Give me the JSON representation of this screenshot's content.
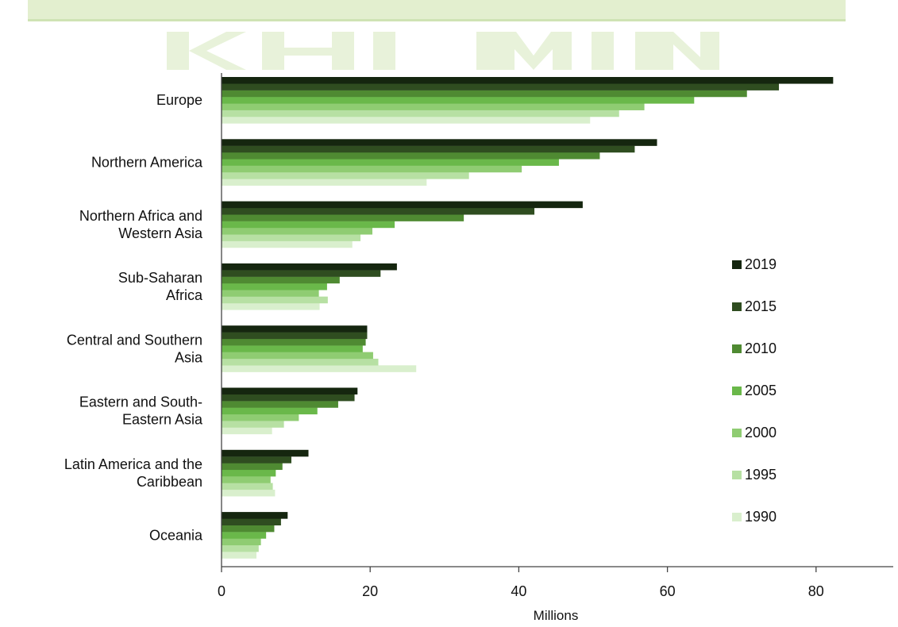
{
  "chart_data": {
    "type": "bar",
    "orientation": "horizontal",
    "title": "",
    "xlabel": "Millions",
    "ylabel": "",
    "xlim": [
      0,
      90
    ],
    "x_ticks": [
      0,
      20,
      40,
      60,
      80
    ],
    "grid": false,
    "legend_position": "right",
    "categories": [
      [
        "Europe"
      ],
      [
        "Northern America"
      ],
      [
        "Northern Africa and",
        "Western Asia"
      ],
      [
        "Sub-Saharan",
        "Africa"
      ],
      [
        "Central and Southern",
        "Asia"
      ],
      [
        "Eastern and South-",
        "Eastern Asia"
      ],
      [
        "Latin America and the",
        "Caribbean"
      ],
      [
        "Oceania"
      ]
    ],
    "series": [
      {
        "name": "2019",
        "color": "#15260f",
        "values": [
          82.3,
          58.6,
          48.6,
          23.6,
          19.6,
          18.3,
          11.7,
          8.9
        ]
      },
      {
        "name": "2015",
        "color": "#2f4d20",
        "values": [
          75.0,
          55.6,
          42.1,
          21.4,
          19.6,
          17.9,
          9.4,
          8.0
        ]
      },
      {
        "name": "2010",
        "color": "#4f8a32",
        "values": [
          70.7,
          50.9,
          32.6,
          15.9,
          19.4,
          15.7,
          8.2,
          7.1
        ]
      },
      {
        "name": "2005",
        "color": "#6ab84a",
        "values": [
          63.6,
          45.4,
          23.3,
          14.2,
          19.0,
          12.9,
          7.3,
          6.0
        ]
      },
      {
        "name": "2000",
        "color": "#8fcc72",
        "values": [
          56.9,
          40.4,
          20.3,
          13.1,
          20.4,
          10.4,
          6.6,
          5.3
        ]
      },
      {
        "name": "1995",
        "color": "#b7e0a3",
        "values": [
          53.5,
          33.3,
          18.7,
          14.3,
          21.1,
          8.4,
          6.9,
          5.0
        ]
      },
      {
        "name": "1990",
        "color": "#d9efcd",
        "values": [
          49.6,
          27.6,
          17.6,
          13.2,
          26.2,
          6.8,
          7.2,
          4.7
        ]
      }
    ]
  }
}
